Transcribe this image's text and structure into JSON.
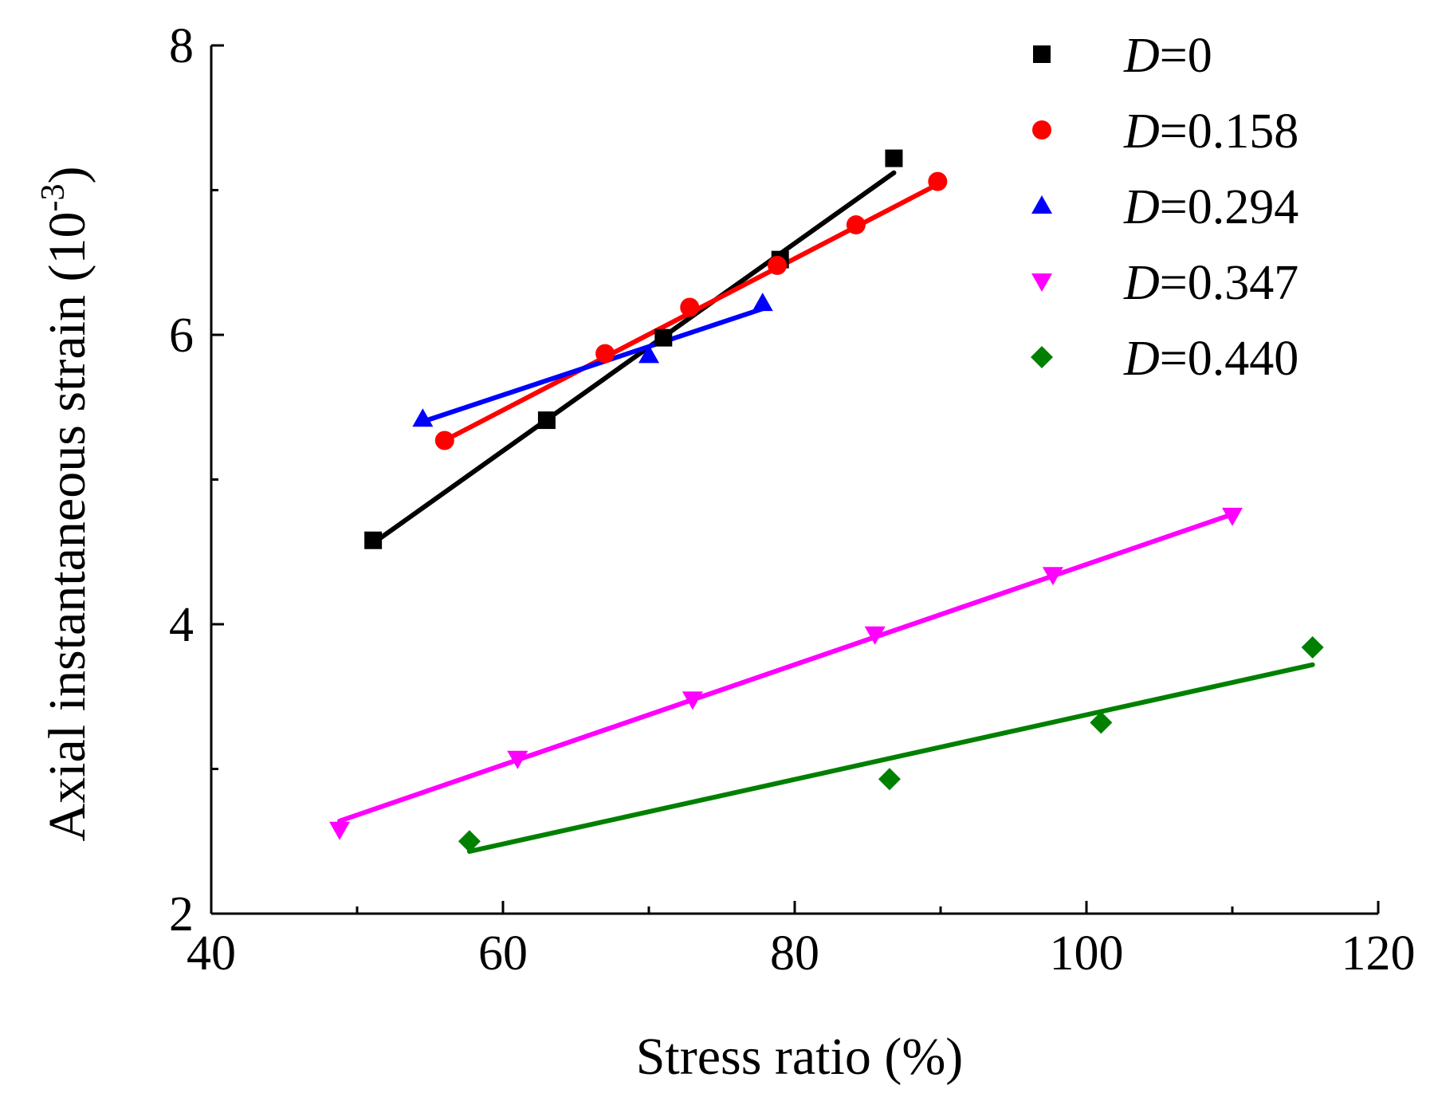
{
  "chart_data": {
    "type": "scatter",
    "xlabel": "Stress ratio (%)",
    "ylabel_main": "Axial instantaneous strain (10",
    "ylabel_exp": "-3",
    "ylabel_close": ")",
    "xlim": [
      40,
      120
    ],
    "ylim": [
      2,
      8
    ],
    "xticks": [
      40,
      60,
      80,
      100,
      120
    ],
    "xminor": [
      50,
      70,
      90,
      110
    ],
    "yticks": [
      2,
      4,
      6,
      8
    ],
    "yminor": [
      3,
      5,
      7
    ],
    "legend_position": "top-right",
    "series": [
      {
        "name": "D=0",
        "prefix": "D",
        "value_label": "=0",
        "marker": "square",
        "color": "#000000",
        "x": [
          51.1,
          63.0,
          71.0,
          79.0,
          86.8
        ],
        "y": [
          4.58,
          5.41,
          5.98,
          6.52,
          7.22
        ],
        "fit": [
          [
            51.1,
            4.56
          ],
          [
            86.8,
            7.12
          ]
        ]
      },
      {
        "name": "D=0.158",
        "prefix": "D",
        "value_label": "=0.158",
        "marker": "circle",
        "color": "#ff0000",
        "x": [
          56.0,
          67.0,
          72.8,
          78.8,
          84.2,
          89.8
        ],
        "y": [
          5.27,
          5.87,
          6.19,
          6.48,
          6.76,
          7.06
        ],
        "fit": [
          [
            56.0,
            5.27
          ],
          [
            89.8,
            7.04
          ]
        ]
      },
      {
        "name": "D=0.294",
        "prefix": "D",
        "value_label": "=0.294",
        "marker": "triangle-up",
        "color": "#0000ff",
        "x": [
          54.5,
          70.0,
          77.8
        ],
        "y": [
          5.42,
          5.86,
          6.22
        ],
        "fit": [
          [
            54.5,
            5.4
          ],
          [
            77.8,
            6.18
          ]
        ]
      },
      {
        "name": "D=0.347",
        "prefix": "D",
        "value_label": "=0.347",
        "marker": "triangle-down",
        "color": "#ff00ff",
        "x": [
          48.8,
          61.0,
          73.0,
          85.5,
          97.7,
          110.0
        ],
        "y": [
          2.58,
          3.07,
          3.48,
          3.93,
          4.34,
          4.75
        ],
        "fit": [
          [
            48.8,
            2.64
          ],
          [
            110.0,
            4.76
          ]
        ]
      },
      {
        "name": "D=0.440",
        "prefix": "D",
        "value_label": "=0.440",
        "marker": "diamond",
        "color": "#008000",
        "x": [
          57.7,
          86.5,
          101.0,
          115.5
        ],
        "y": [
          2.5,
          2.93,
          3.32,
          3.84
        ],
        "fit": [
          [
            57.7,
            2.43
          ],
          [
            115.5,
            3.72
          ]
        ]
      }
    ]
  }
}
